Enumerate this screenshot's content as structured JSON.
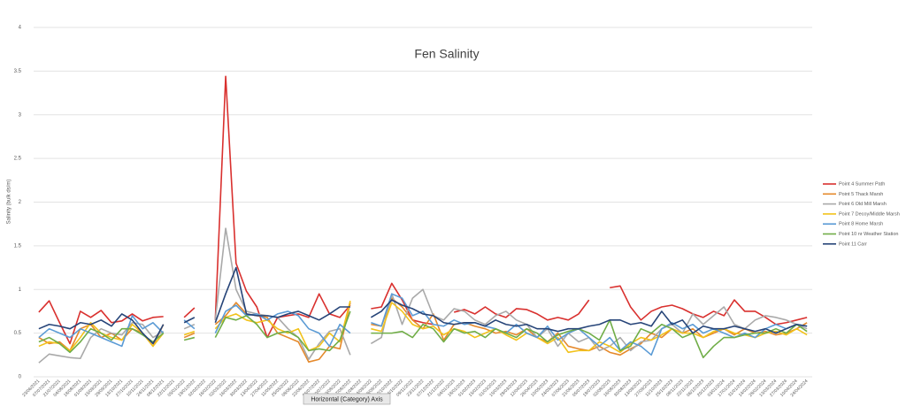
{
  "chart_data": {
    "type": "line",
    "title": "Fen Salinity",
    "y_label": "Salinity (bulk ds/m)",
    "tooltip": "Horizontal (Category) Axis",
    "ylim": [
      0,
      4
    ],
    "yticks": [
      0,
      0.5,
      1,
      1.5,
      2,
      2.5,
      3,
      3.5,
      4
    ],
    "grid": true,
    "legend": "right",
    "categories": [
      "23/06/2021",
      "07/07/2021",
      "21/07/2021",
      "04/08/2021",
      "18/08/2021",
      "01/09/2021",
      "15/09/2021",
      "29/09/2021",
      "13/10/2021",
      "27/10/2021",
      "10/11/2021",
      "24/11/2021",
      "08/12/2021",
      "22/12/2021",
      "05/01/2022",
      "19/01/2022",
      "02/02/2022",
      "16/02/2022",
      "02/03/2022",
      "16/03/2022",
      "30/03/2022",
      "13/04/2022",
      "27/04/2022",
      "11/05/2022",
      "25/05/2022",
      "08/06/2022",
      "22/06/2022",
      "06/07/2022",
      "20/07/2022",
      "03/08/2022",
      "17/08/2022",
      "31/08/2022",
      "14/09/2022",
      "28/09/2022",
      "12/10/2022",
      "26/10/2022",
      "09/11/2022",
      "23/11/2022",
      "07/12/2022",
      "21/12/2022",
      "04/01/2023",
      "18/01/2023",
      "01/02/2023",
      "15/02/2023",
      "01/03/2023",
      "15/03/2023",
      "29/03/2023",
      "12/04/2023",
      "26/04/2023",
      "10/05/2023",
      "24/05/2023",
      "07/06/2023",
      "21/06/2023",
      "05/07/2023",
      "19/07/2023",
      "02/08/2023",
      "16/08/2023",
      "30/08/2023",
      "13/09/2023",
      "27/09/2023",
      "11/10/2023",
      "25/10/2023",
      "08/11/2023",
      "22/11/2023",
      "06/12/2023",
      "20/12/2023",
      "03/01/2024",
      "17/01/2024",
      "31/01/2024",
      "14/02/2024",
      "28/02/2024",
      "13/03/2024",
      "27/03/2024",
      "10/04/2024",
      "24/04/2024"
    ],
    "series": [
      {
        "name": "Point 4 Summer Path",
        "color": "#d9302e",
        "values": [
          0.74,
          0.87,
          0.62,
          0.38,
          0.75,
          0.68,
          0.76,
          0.62,
          0.64,
          0.72,
          0.64,
          0.68,
          0.69,
          null,
          0.68,
          0.79,
          null,
          0.65,
          3.44,
          1.3,
          0.98,
          0.8,
          0.45,
          0.68,
          0.7,
          0.72,
          0.68,
          0.95,
          0.72,
          0.68,
          0.82,
          null,
          0.78,
          0.8,
          1.07,
          0.88,
          0.65,
          0.62,
          0.6,
          null,
          0.74,
          0.77,
          0.72,
          0.8,
          0.72,
          0.68,
          0.78,
          0.77,
          0.72,
          0.65,
          0.68,
          0.65,
          0.72,
          0.88,
          null,
          1.02,
          1.04,
          0.8,
          0.65,
          0.75,
          0.8,
          0.82,
          0.78,
          0.72,
          0.68,
          0.75,
          0.7,
          0.88,
          0.75,
          0.75,
          0.68,
          0.6,
          0.62,
          0.65,
          0.68
        ]
      },
      {
        "name": "Point 5 Thack Marsh",
        "color": "#e5892b",
        "values": [
          0.45,
          0.38,
          0.4,
          0.3,
          0.55,
          0.6,
          0.45,
          0.5,
          0.42,
          0.55,
          0.5,
          0.35,
          0.6,
          null,
          0.45,
          0.5,
          null,
          0.6,
          0.7,
          0.85,
          0.72,
          0.7,
          0.68,
          0.5,
          0.45,
          0.4,
          0.17,
          0.2,
          0.35,
          0.32,
          0.85,
          null,
          0.6,
          0.58,
          0.9,
          0.8,
          0.65,
          0.55,
          0.72,
          0.42,
          0.6,
          0.62,
          0.58,
          0.55,
          0.5,
          0.52,
          0.48,
          0.55,
          0.45,
          0.4,
          0.5,
          0.35,
          0.32,
          0.3,
          0.35,
          0.28,
          0.25,
          0.32,
          0.38,
          0.5,
          0.45,
          0.55,
          0.5,
          0.55,
          0.45,
          0.5,
          0.55,
          0.48,
          0.55,
          0.5,
          0.52,
          0.48,
          0.5,
          0.55,
          0.62
        ]
      },
      {
        "name": "Point 6 Old Mill Marsh",
        "color": "#a9a9a9",
        "values": [
          0.16,
          0.26,
          0.24,
          0.22,
          0.21,
          0.45,
          0.55,
          0.5,
          0.48,
          0.62,
          0.6,
          0.45,
          0.52,
          null,
          0.55,
          0.6,
          null,
          0.65,
          1.7,
          1.0,
          0.75,
          0.72,
          0.7,
          0.68,
          0.55,
          0.45,
          0.2,
          0.38,
          0.52,
          0.55,
          0.25,
          null,
          0.38,
          0.45,
          0.95,
          0.6,
          0.9,
          1.0,
          0.7,
          0.65,
          0.78,
          0.75,
          0.65,
          0.6,
          0.7,
          0.75,
          0.65,
          0.6,
          0.45,
          0.55,
          0.35,
          0.5,
          0.4,
          0.45,
          0.3,
          0.35,
          0.45,
          0.3,
          0.4,
          0.42,
          0.55,
          0.6,
          0.5,
          0.72,
          0.6,
          0.7,
          0.8,
          0.6,
          0.55,
          0.65,
          0.7,
          0.68,
          0.65,
          0.6,
          0.55
        ]
      },
      {
        "name": "Point 7 Decoy/Middle Marsh",
        "color": "#f2c21a",
        "values": [
          0.35,
          0.4,
          0.38,
          0.3,
          0.45,
          0.62,
          0.5,
          0.45,
          0.42,
          0.6,
          0.5,
          0.35,
          0.5,
          null,
          0.48,
          0.52,
          null,
          0.55,
          0.68,
          0.72,
          0.65,
          0.62,
          0.65,
          0.55,
          0.5,
          0.55,
          0.3,
          0.35,
          0.5,
          0.4,
          0.87,
          null,
          0.55,
          0.52,
          0.85,
          0.75,
          0.6,
          0.55,
          0.58,
          0.48,
          0.55,
          0.52,
          0.45,
          0.5,
          0.55,
          0.48,
          0.42,
          0.5,
          0.45,
          0.38,
          0.45,
          0.28,
          0.3,
          0.3,
          0.4,
          0.35,
          0.28,
          0.38,
          0.45,
          0.42,
          0.48,
          0.55,
          0.5,
          0.5,
          0.45,
          0.52,
          0.55,
          0.5,
          0.48,
          0.45,
          0.5,
          0.52,
          0.48,
          0.55,
          0.48
        ]
      },
      {
        "name": "Point 8 Home Marsh",
        "color": "#5b9bd5",
        "values": [
          0.45,
          0.55,
          0.5,
          0.45,
          0.55,
          0.5,
          0.45,
          0.4,
          0.35,
          0.7,
          0.55,
          0.62,
          0.5,
          null,
          0.65,
          0.55,
          null,
          0.5,
          0.75,
          0.82,
          0.7,
          0.72,
          0.65,
          0.72,
          0.75,
          0.7,
          0.55,
          0.5,
          0.35,
          0.6,
          0.5,
          null,
          0.62,
          0.58,
          0.95,
          0.9,
          0.7,
          0.75,
          0.6,
          0.58,
          0.65,
          0.6,
          0.62,
          0.58,
          0.55,
          0.5,
          0.6,
          0.5,
          0.45,
          0.58,
          0.42,
          0.5,
          0.55,
          0.45,
          0.35,
          0.45,
          0.3,
          0.4,
          0.35,
          0.25,
          0.55,
          0.62,
          0.55,
          0.6,
          0.5,
          0.55,
          0.5,
          0.45,
          0.5,
          0.45,
          0.55,
          0.6,
          0.55,
          0.6,
          0.58
        ]
      },
      {
        "name": "Point 10 nr Weather Station",
        "color": "#70ad47",
        "values": [
          0.4,
          0.45,
          0.38,
          0.28,
          0.4,
          0.55,
          0.5,
          0.42,
          0.55,
          0.55,
          0.48,
          0.4,
          0.5,
          null,
          0.42,
          0.45,
          null,
          0.45,
          0.68,
          0.65,
          0.7,
          0.6,
          0.45,
          0.5,
          0.52,
          0.45,
          0.3,
          0.32,
          0.3,
          0.42,
          0.75,
          null,
          0.5,
          0.5,
          0.5,
          0.52,
          0.45,
          0.6,
          0.55,
          0.4,
          0.55,
          0.5,
          0.52,
          0.45,
          0.55,
          0.5,
          0.45,
          0.55,
          0.5,
          0.4,
          0.48,
          0.52,
          0.55,
          0.5,
          0.42,
          0.65,
          0.3,
          0.35,
          0.55,
          0.5,
          0.6,
          0.55,
          0.45,
          0.5,
          0.22,
          0.35,
          0.45,
          0.45,
          0.48,
          0.5,
          0.5,
          0.55,
          0.5,
          0.6,
          0.52
        ]
      },
      {
        "name": "Point 11 Carr",
        "color": "#264478",
        "values": [
          0.55,
          0.6,
          0.58,
          0.55,
          0.62,
          0.6,
          0.65,
          0.58,
          0.72,
          0.65,
          0.5,
          0.38,
          0.6,
          null,
          0.62,
          0.68,
          null,
          0.62,
          0.95,
          1.25,
          0.72,
          0.7,
          0.7,
          0.68,
          0.72,
          0.75,
          0.7,
          0.65,
          0.72,
          0.8,
          0.8,
          null,
          0.68,
          0.75,
          0.88,
          0.82,
          0.78,
          0.72,
          0.7,
          0.62,
          0.6,
          0.62,
          0.62,
          0.58,
          0.65,
          0.6,
          0.58,
          0.6,
          0.55,
          0.55,
          0.52,
          0.55,
          0.55,
          0.58,
          0.6,
          0.65,
          0.65,
          0.6,
          0.62,
          0.58,
          0.75,
          0.6,
          0.65,
          0.5,
          0.58,
          0.55,
          0.55,
          0.58,
          0.55,
          0.52,
          0.55,
          0.5,
          0.55,
          0.6,
          0.58
        ]
      }
    ]
  }
}
